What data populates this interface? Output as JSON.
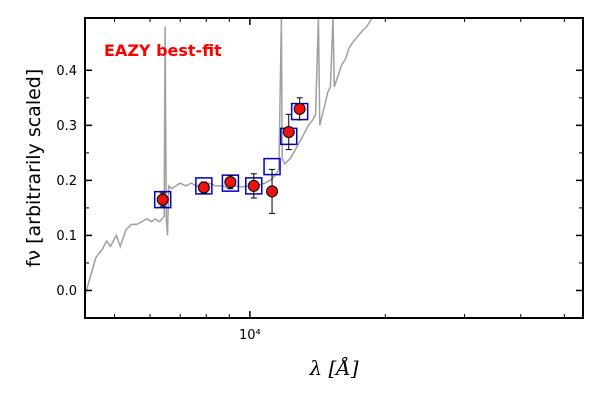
{
  "chart_data": {
    "type": "scatter",
    "title": "",
    "xlabel": "λ [Å]",
    "ylabel": "fν [arbitrarily scaled]",
    "xscale": "log",
    "xlim": [
      4300,
      55000
    ],
    "ylim": [
      -0.05,
      0.495
    ],
    "xticks": [
      {
        "value": 10000,
        "label": "10⁴"
      }
    ],
    "yticks": [
      {
        "value": 0.0,
        "label": "0.0"
      },
      {
        "value": 0.1,
        "label": "0.1"
      },
      {
        "value": 0.2,
        "label": "0.2"
      },
      {
        "value": 0.3,
        "label": "0.3"
      },
      {
        "value": 0.4,
        "label": "0.4"
      }
    ],
    "annotation": {
      "text": "EAZY best-fit",
      "color": "#ff0000"
    },
    "series": [
      {
        "kind": "line",
        "color": "#a0a0a0",
        "points": [
          [
            4300,
            -0.01
          ],
          [
            4400,
            0.02
          ],
          [
            4550,
            0.06
          ],
          [
            4700,
            0.075
          ],
          [
            4800,
            0.09
          ],
          [
            4900,
            0.08
          ],
          [
            5050,
            0.1
          ],
          [
            5150,
            0.08
          ],
          [
            5300,
            0.11
          ],
          [
            5450,
            0.12
          ],
          [
            5600,
            0.12
          ],
          [
            5750,
            0.125
          ],
          [
            5900,
            0.13
          ],
          [
            6050,
            0.125
          ],
          [
            6150,
            0.13
          ],
          [
            6300,
            0.125
          ],
          [
            6450,
            0.135
          ],
          [
            6480,
            0.48
          ],
          [
            6520,
            0.13
          ],
          [
            6560,
            0.1
          ],
          [
            6600,
            0.19
          ],
          [
            6700,
            0.185
          ],
          [
            6850,
            0.19
          ],
          [
            7000,
            0.195
          ],
          [
            7200,
            0.19
          ],
          [
            7400,
            0.195
          ],
          [
            7600,
            0.19
          ],
          [
            7850,
            0.19
          ],
          [
            8100,
            0.195
          ],
          [
            8400,
            0.19
          ],
          [
            8700,
            0.19
          ],
          [
            9000,
            0.185
          ],
          [
            9300,
            0.19
          ],
          [
            9600,
            0.188
          ],
          [
            9900,
            0.19
          ],
          [
            10200,
            0.19
          ],
          [
            10500,
            0.192
          ],
          [
            10800,
            0.195
          ],
          [
            11100,
            0.2
          ],
          [
            11400,
            0.21
          ],
          [
            11600,
            0.22
          ],
          [
            11750,
            0.495
          ],
          [
            11800,
            0.24
          ],
          [
            11950,
            0.23
          ],
          [
            12300,
            0.24
          ],
          [
            12700,
            0.26
          ],
          [
            13100,
            0.28
          ],
          [
            13500,
            0.3
          ],
          [
            13800,
            0.31
          ],
          [
            14000,
            0.32
          ],
          [
            14200,
            0.495
          ],
          [
            14300,
            0.3
          ],
          [
            14600,
            0.33
          ],
          [
            14900,
            0.36
          ],
          [
            15100,
            0.37
          ],
          [
            15300,
            0.495
          ],
          [
            15400,
            0.37
          ],
          [
            15700,
            0.39
          ],
          [
            16000,
            0.41
          ],
          [
            16300,
            0.42
          ],
          [
            16600,
            0.44
          ],
          [
            16900,
            0.45
          ],
          [
            17300,
            0.46
          ],
          [
            17700,
            0.47
          ],
          [
            18200,
            0.48
          ],
          [
            18700,
            0.495
          ]
        ]
      },
      {
        "kind": "model-boxes",
        "color": "#0000cc",
        "points": [
          [
            6400,
            0.165
          ],
          [
            7900,
            0.19
          ],
          [
            9050,
            0.195
          ],
          [
            10200,
            0.19
          ],
          [
            11200,
            0.225
          ],
          [
            12200,
            0.28
          ],
          [
            12900,
            0.325
          ]
        ]
      },
      {
        "kind": "observed",
        "color": "#ee1111",
        "points": [
          {
            "x": 6400,
            "y": 0.165,
            "err": 0.012
          },
          {
            "x": 7900,
            "y": 0.187,
            "err": 0.01
          },
          {
            "x": 9050,
            "y": 0.197,
            "err": 0.012
          },
          {
            "x": 10200,
            "y": 0.19,
            "err": 0.022
          },
          {
            "x": 11200,
            "y": 0.18,
            "err": 0.04
          },
          {
            "x": 12200,
            "y": 0.288,
            "err": 0.032
          },
          {
            "x": 12900,
            "y": 0.33,
            "err": 0.02
          }
        ]
      }
    ]
  }
}
